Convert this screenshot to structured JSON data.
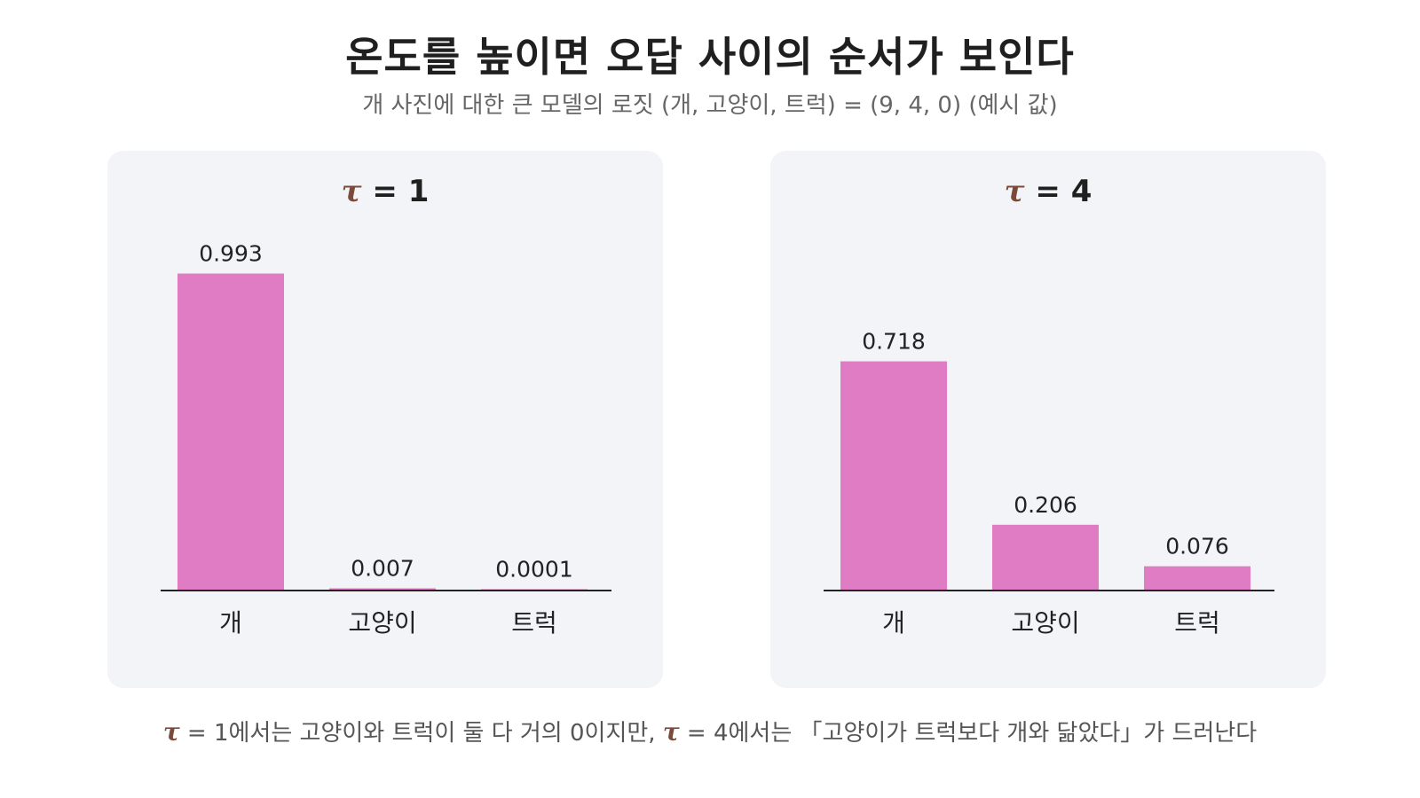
{
  "title": "온도를 높이면 오답 사이의 순서가 보인다",
  "subtitle": "개 사진에 대한 큰 모델의 로짓 (개, 고양이, 트럭) = (9, 4, 0) (예시 값)",
  "tau_symbol": "τ",
  "colors": {
    "bar": "#e07cc3",
    "axis": "#222222",
    "tau": "#7a4a3a"
  },
  "chart_data": [
    {
      "type": "bar",
      "title": "τ = 1",
      "title_suffix": " = 1",
      "categories": [
        "개",
        "고양이",
        "트럭"
      ],
      "values": [
        0.993,
        0.007,
        0.0001
      ],
      "value_labels": [
        "0.993",
        "0.007",
        "0.0001"
      ],
      "ylim": [
        0,
        1
      ],
      "xlabel": "",
      "ylabel": ""
    },
    {
      "type": "bar",
      "title": "τ = 4",
      "title_suffix": " = 4",
      "categories": [
        "개",
        "고양이",
        "트럭"
      ],
      "values": [
        0.718,
        0.206,
        0.076
      ],
      "value_labels": [
        "0.718",
        "0.206",
        "0.076"
      ],
      "ylim": [
        0,
        1
      ],
      "xlabel": "",
      "ylabel": ""
    }
  ],
  "footnote": {
    "part1": " = 1에서는 고양이와 트럭이 둘 다 거의 0이지만, ",
    "part2": " = 4에서는 「고양이가 트럭보다 개와 닮았다」가 드러난다"
  }
}
